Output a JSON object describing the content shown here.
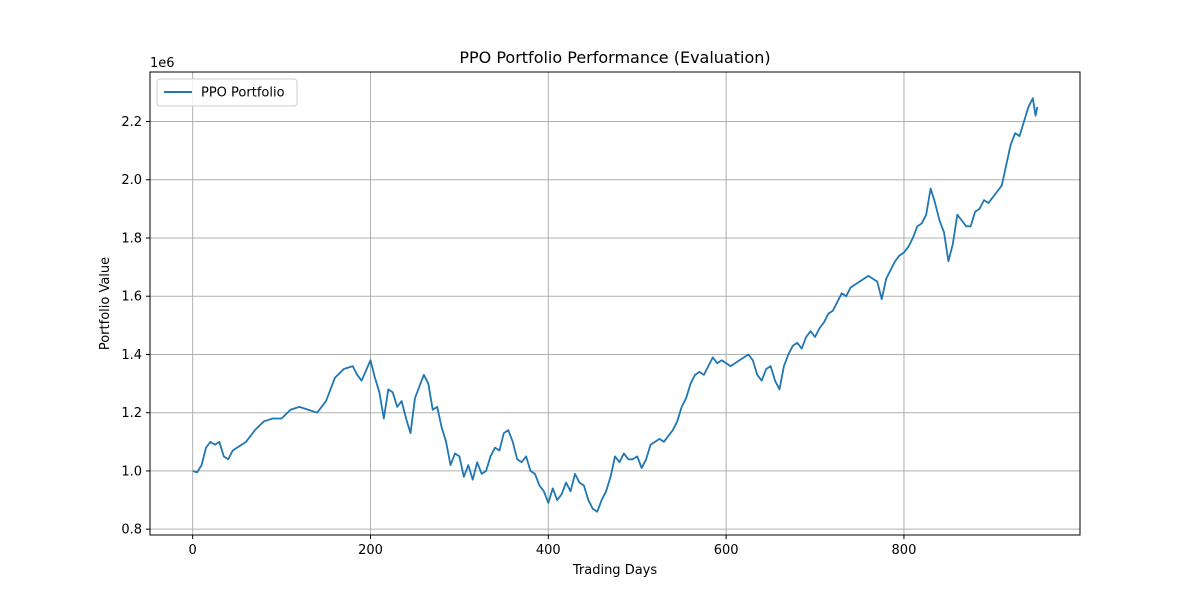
{
  "chart_data": {
    "type": "line",
    "title": "PPO Portfolio Performance (Evaluation)",
    "xlabel": "Trading Days",
    "ylabel": "Portfolio Value",
    "y_offset_label": "1e6",
    "xlim": [
      -48,
      998
    ],
    "ylim": [
      0.78,
      2.37
    ],
    "x_ticks": [
      0,
      200,
      400,
      600,
      800
    ],
    "y_ticks": [
      0.8,
      1.0,
      1.2,
      1.4,
      1.6,
      1.8,
      2.0,
      2.2
    ],
    "y_tick_labels": [
      "0.8",
      "1.0",
      "1.2",
      "1.4",
      "1.6",
      "1.8",
      "2.0",
      "2.2"
    ],
    "grid": true,
    "legend_position": "upper-left",
    "series": [
      {
        "name": "PPO Portfolio",
        "color": "#1f77b4",
        "points": [
          [
            0,
            1.0
          ],
          [
            5,
            0.995
          ],
          [
            10,
            1.02
          ],
          [
            15,
            1.08
          ],
          [
            20,
            1.1
          ],
          [
            25,
            1.09
          ],
          [
            30,
            1.1
          ],
          [
            35,
            1.05
          ],
          [
            40,
            1.04
          ],
          [
            45,
            1.07
          ],
          [
            50,
            1.08
          ],
          [
            60,
            1.1
          ],
          [
            70,
            1.14
          ],
          [
            80,
            1.17
          ],
          [
            90,
            1.18
          ],
          [
            100,
            1.18
          ],
          [
            110,
            1.21
          ],
          [
            120,
            1.22
          ],
          [
            130,
            1.21
          ],
          [
            140,
            1.2
          ],
          [
            150,
            1.24
          ],
          [
            160,
            1.32
          ],
          [
            170,
            1.35
          ],
          [
            180,
            1.36
          ],
          [
            185,
            1.33
          ],
          [
            190,
            1.31
          ],
          [
            200,
            1.38
          ],
          [
            205,
            1.32
          ],
          [
            210,
            1.27
          ],
          [
            215,
            1.18
          ],
          [
            220,
            1.28
          ],
          [
            225,
            1.27
          ],
          [
            230,
            1.22
          ],
          [
            235,
            1.24
          ],
          [
            240,
            1.18
          ],
          [
            245,
            1.13
          ],
          [
            250,
            1.25
          ],
          [
            255,
            1.29
          ],
          [
            260,
            1.33
          ],
          [
            265,
            1.3
          ],
          [
            270,
            1.21
          ],
          [
            275,
            1.22
          ],
          [
            280,
            1.15
          ],
          [
            285,
            1.1
          ],
          [
            290,
            1.02
          ],
          [
            295,
            1.06
          ],
          [
            300,
            1.05
          ],
          [
            305,
            0.98
          ],
          [
            310,
            1.02
          ],
          [
            315,
            0.97
          ],
          [
            320,
            1.03
          ],
          [
            325,
            0.99
          ],
          [
            330,
            1.0
          ],
          [
            335,
            1.05
          ],
          [
            340,
            1.08
          ],
          [
            345,
            1.07
          ],
          [
            350,
            1.13
          ],
          [
            355,
            1.14
          ],
          [
            360,
            1.1
          ],
          [
            365,
            1.04
          ],
          [
            370,
            1.03
          ],
          [
            375,
            1.05
          ],
          [
            380,
            1.0
          ],
          [
            385,
            0.99
          ],
          [
            390,
            0.95
          ],
          [
            395,
            0.93
          ],
          [
            400,
            0.89
          ],
          [
            405,
            0.94
          ],
          [
            410,
            0.9
          ],
          [
            415,
            0.92
          ],
          [
            420,
            0.96
          ],
          [
            425,
            0.93
          ],
          [
            430,
            0.99
          ],
          [
            435,
            0.96
          ],
          [
            440,
            0.95
          ],
          [
            445,
            0.9
          ],
          [
            450,
            0.87
          ],
          [
            455,
            0.86
          ],
          [
            460,
            0.9
          ],
          [
            465,
            0.93
          ],
          [
            470,
            0.98
          ],
          [
            475,
            1.05
          ],
          [
            480,
            1.03
          ],
          [
            485,
            1.06
          ],
          [
            490,
            1.04
          ],
          [
            495,
            1.04
          ],
          [
            500,
            1.05
          ],
          [
            505,
            1.01
          ],
          [
            510,
            1.04
          ],
          [
            515,
            1.09
          ],
          [
            520,
            1.1
          ],
          [
            525,
            1.11
          ],
          [
            530,
            1.1
          ],
          [
            535,
            1.12
          ],
          [
            540,
            1.14
          ],
          [
            545,
            1.17
          ],
          [
            550,
            1.22
          ],
          [
            555,
            1.25
          ],
          [
            560,
            1.3
          ],
          [
            565,
            1.33
          ],
          [
            570,
            1.34
          ],
          [
            575,
            1.33
          ],
          [
            580,
            1.36
          ],
          [
            585,
            1.39
          ],
          [
            590,
            1.37
          ],
          [
            595,
            1.38
          ],
          [
            600,
            1.37
          ],
          [
            605,
            1.36
          ],
          [
            610,
            1.37
          ],
          [
            615,
            1.38
          ],
          [
            620,
            1.39
          ],
          [
            625,
            1.4
          ],
          [
            630,
            1.38
          ],
          [
            635,
            1.33
          ],
          [
            640,
            1.31
          ],
          [
            645,
            1.35
          ],
          [
            650,
            1.36
          ],
          [
            655,
            1.31
          ],
          [
            660,
            1.28
          ],
          [
            665,
            1.36
          ],
          [
            670,
            1.4
          ],
          [
            675,
            1.43
          ],
          [
            680,
            1.44
          ],
          [
            685,
            1.42
          ],
          [
            690,
            1.46
          ],
          [
            695,
            1.48
          ],
          [
            700,
            1.46
          ],
          [
            705,
            1.49
          ],
          [
            710,
            1.51
          ],
          [
            715,
            1.54
          ],
          [
            720,
            1.55
          ],
          [
            725,
            1.58
          ],
          [
            730,
            1.61
          ],
          [
            735,
            1.6
          ],
          [
            740,
            1.63
          ],
          [
            745,
            1.64
          ],
          [
            750,
            1.65
          ],
          [
            755,
            1.66
          ],
          [
            760,
            1.67
          ],
          [
            765,
            1.66
          ],
          [
            770,
            1.65
          ],
          [
            775,
            1.59
          ],
          [
            780,
            1.66
          ],
          [
            785,
            1.69
          ],
          [
            790,
            1.72
          ],
          [
            795,
            1.74
          ],
          [
            800,
            1.75
          ],
          [
            805,
            1.77
          ],
          [
            810,
            1.8
          ],
          [
            815,
            1.84
          ],
          [
            820,
            1.85
          ],
          [
            825,
            1.88
          ],
          [
            830,
            1.97
          ],
          [
            835,
            1.92
          ],
          [
            840,
            1.86
          ],
          [
            845,
            1.82
          ],
          [
            850,
            1.72
          ],
          [
            855,
            1.78
          ],
          [
            860,
            1.88
          ],
          [
            865,
            1.86
          ],
          [
            870,
            1.84
          ],
          [
            875,
            1.84
          ],
          [
            880,
            1.89
          ],
          [
            885,
            1.9
          ],
          [
            890,
            1.93
          ],
          [
            895,
            1.92
          ],
          [
            900,
            1.94
          ],
          [
            905,
            1.96
          ],
          [
            910,
            1.98
          ],
          [
            915,
            2.05
          ],
          [
            920,
            2.12
          ],
          [
            925,
            2.16
          ],
          [
            930,
            2.15
          ],
          [
            935,
            2.2
          ],
          [
            940,
            2.25
          ],
          [
            945,
            2.28
          ],
          [
            948,
            2.22
          ],
          [
            950,
            2.25
          ]
        ]
      }
    ]
  }
}
